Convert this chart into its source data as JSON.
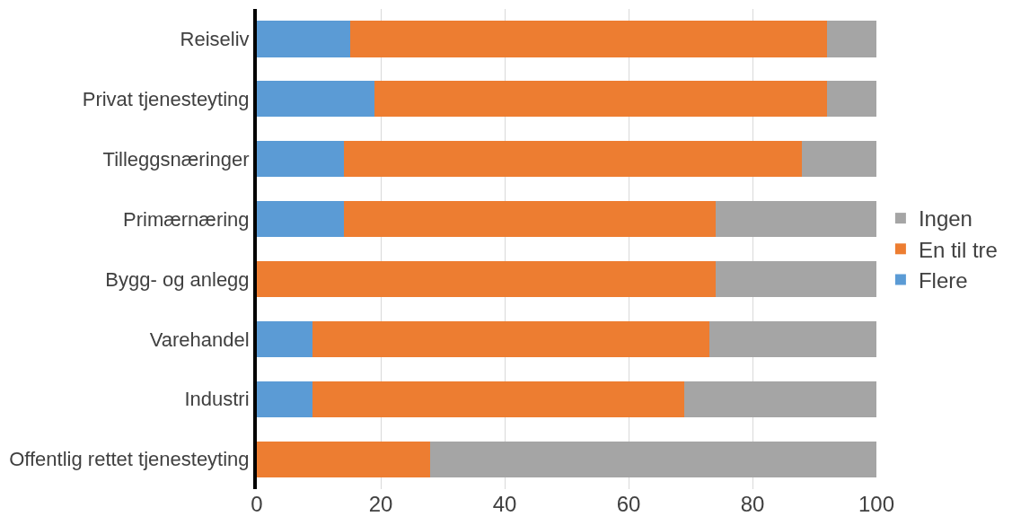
{
  "chart_data": {
    "type": "bar",
    "orientation": "horizontal",
    "stacked": true,
    "categories": [
      "Reiseliv",
      "Privat tjenesteyting",
      "Tilleggsnæringer",
      "Primærnæring",
      "Bygg- og anlegg",
      "Varehandel",
      "Industri",
      "Offentlig rettet tjenesteyting"
    ],
    "series": [
      {
        "name": "Flere",
        "color": "#5b9bd5",
        "values": [
          15,
          19,
          14,
          14,
          0,
          9,
          9,
          0
        ]
      },
      {
        "name": "En til tre",
        "color": "#ed7d31",
        "values": [
          77,
          73,
          74,
          60,
          74,
          64,
          60,
          28
        ]
      },
      {
        "name": "Ingen",
        "color": "#a5a5a5",
        "values": [
          8,
          8,
          12,
          26,
          26,
          27,
          31,
          72
        ]
      }
    ],
    "xlim": [
      0,
      100
    ],
    "xticks": [
      0,
      20,
      40,
      60,
      80,
      100
    ],
    "grid": "x",
    "legend": "right"
  }
}
